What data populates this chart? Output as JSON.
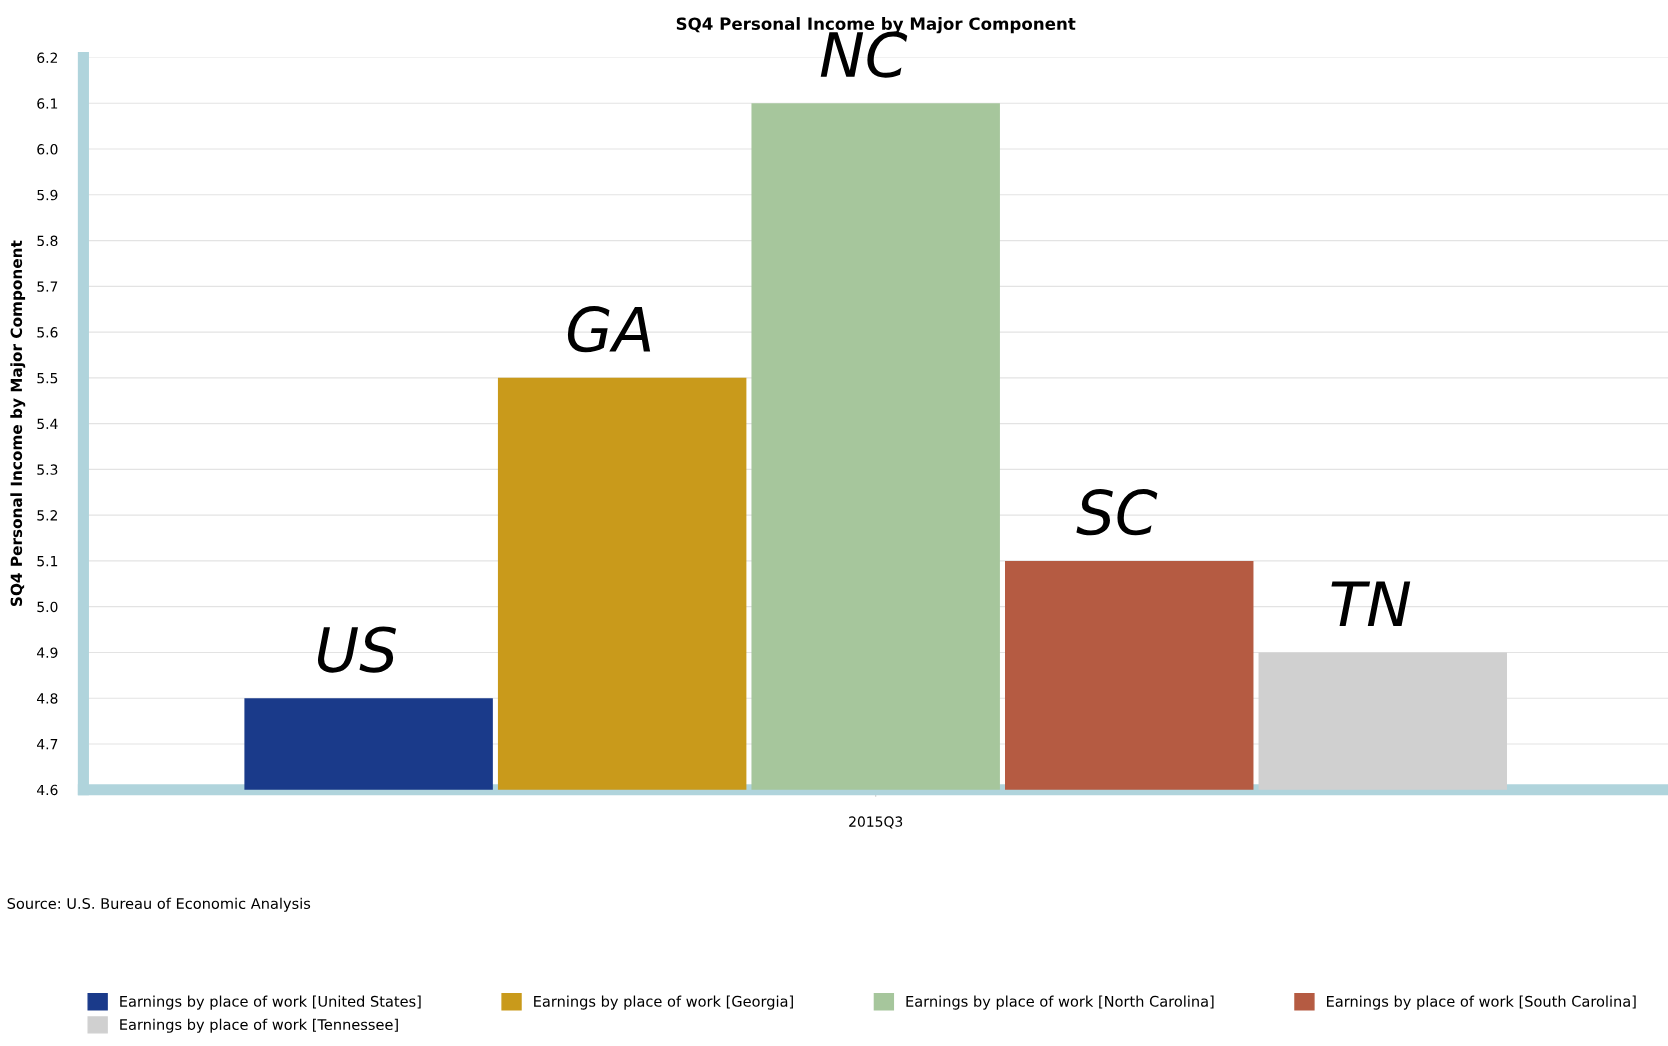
{
  "chart_data": {
    "type": "bar",
    "title": "SQ4 Personal Income by Major Component",
    "ylabel": "SQ4 Personal Income by Major Component",
    "categories": [
      "2015Q3"
    ],
    "series": [
      {
        "name": "Earnings by place of work [United States]",
        "color": "#1a3a8a",
        "values": [
          4.8
        ]
      },
      {
        "name": "Earnings by place of work [Georgia]",
        "color": "#c99a1b",
        "values": [
          5.5
        ]
      },
      {
        "name": "Earnings by place of work [North Carolina]",
        "color": "#a6c69c",
        "values": [
          6.1
        ]
      },
      {
        "name": "Earnings by place of work [South Carolina]",
        "color": "#b55b42",
        "values": [
          5.1
        ]
      },
      {
        "name": "Earnings by place of work [Tennessee]",
        "color": "#d0d0d0",
        "values": [
          4.9
        ]
      }
    ],
    "annotations": [
      "US",
      "GA",
      "NC",
      "SC",
      "TN",
      "Source: U.S. Bureau of Economic Analysis"
    ],
    "ylim": [
      4.6,
      6.2
    ],
    "yticks": [
      4.6,
      4.7,
      4.8,
      4.9,
      {
        "value": 5,
        "label": "5.0"
      },
      5.1,
      5.2,
      5.3,
      5.4,
      5.5,
      5.6,
      5.7,
      5.8,
      5.9,
      {
        "value": 6,
        "label": "6.0"
      },
      6.1,
      6.2
    ],
    "grid": "y",
    "legend": "bottom"
  }
}
